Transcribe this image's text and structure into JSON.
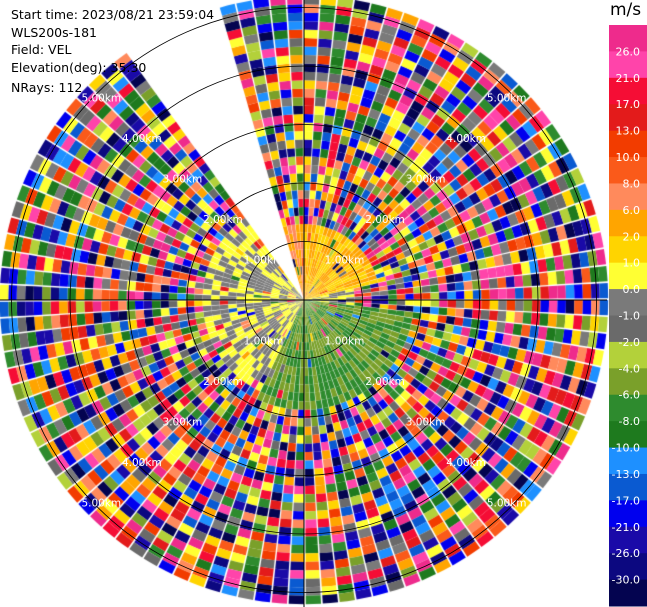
{
  "header": {
    "start_time": "Start time: 2023/08/21 23:59:04",
    "instrument": "WLS200s-181",
    "field": "Field: VEL",
    "elevation": "Elevation(deg): 35.30",
    "nrays": "NRays: 112"
  },
  "colorbar": {
    "title": "m/s",
    "ticks": [
      "26.0",
      "21.0",
      "17.0",
      "13.0",
      "10.0",
      "8.0",
      "6.0",
      "2.0",
      "1.0",
      "0.0",
      "-1.0",
      "-2.0",
      "-4.0",
      "-6.0",
      "-8.0",
      "-10.0",
      "-13.0",
      "-17.0",
      "-21.0",
      "-26.0",
      "-30.0"
    ],
    "colors": [
      "#ee2b8c",
      "#ff44aa",
      "#f50d35",
      "#e31b1b",
      "#f23c00",
      "#fa5a1a",
      "#ff8a5c",
      "#ffa500",
      "#ffd400",
      "#ffff33",
      "#7a7a7a",
      "#6a6a6a",
      "#b3d13a",
      "#7aa02a",
      "#2e8b2e",
      "#1e7a1e",
      "#1e90ff",
      "#0a5ad1",
      "#0000ee",
      "#1a0aa8",
      "#0c0880",
      "#040450"
    ]
  },
  "chart_data": {
    "type": "ppi",
    "field": "VEL",
    "units": "m/s",
    "range_ring_labels": [
      "1.00km",
      "2.00km",
      "3.00km",
      "4.00km",
      "5.00km"
    ],
    "range_rings_km": [
      1,
      2,
      3,
      4,
      5
    ],
    "max_range_km": 5.2,
    "nrays": 112,
    "elevation_deg": 35.3,
    "blank_sector_deg": [
      -38,
      -18
    ],
    "bins_per_ray": 36,
    "near_field": [
      {
        "azimuth_from_deg": 205,
        "azimuth_to_deg": 330,
        "range_km": 1.8,
        "velocity_ms": 0.0
      },
      {
        "azimuth_from_deg": 330,
        "azimuth_to_deg": 360,
        "range_km": 1.3,
        "velocity_ms": 6.0
      },
      {
        "azimuth_from_deg": 0,
        "azimuth_to_deg": 75,
        "range_km": 1.4,
        "velocity_ms": 2.0
      },
      {
        "azimuth_from_deg": 75,
        "azimuth_to_deg": 95,
        "range_km": 1.0,
        "velocity_ms": 0.0
      },
      {
        "azimuth_from_deg": 95,
        "azimuth_to_deg": 205,
        "range_km": 1.9,
        "velocity_ms": -6.0
      },
      {
        "azimuth_from_deg": 150,
        "azimuth_to_deg": 175,
        "range_km": 1.3,
        "velocity_ms": -10.0
      }
    ]
  }
}
